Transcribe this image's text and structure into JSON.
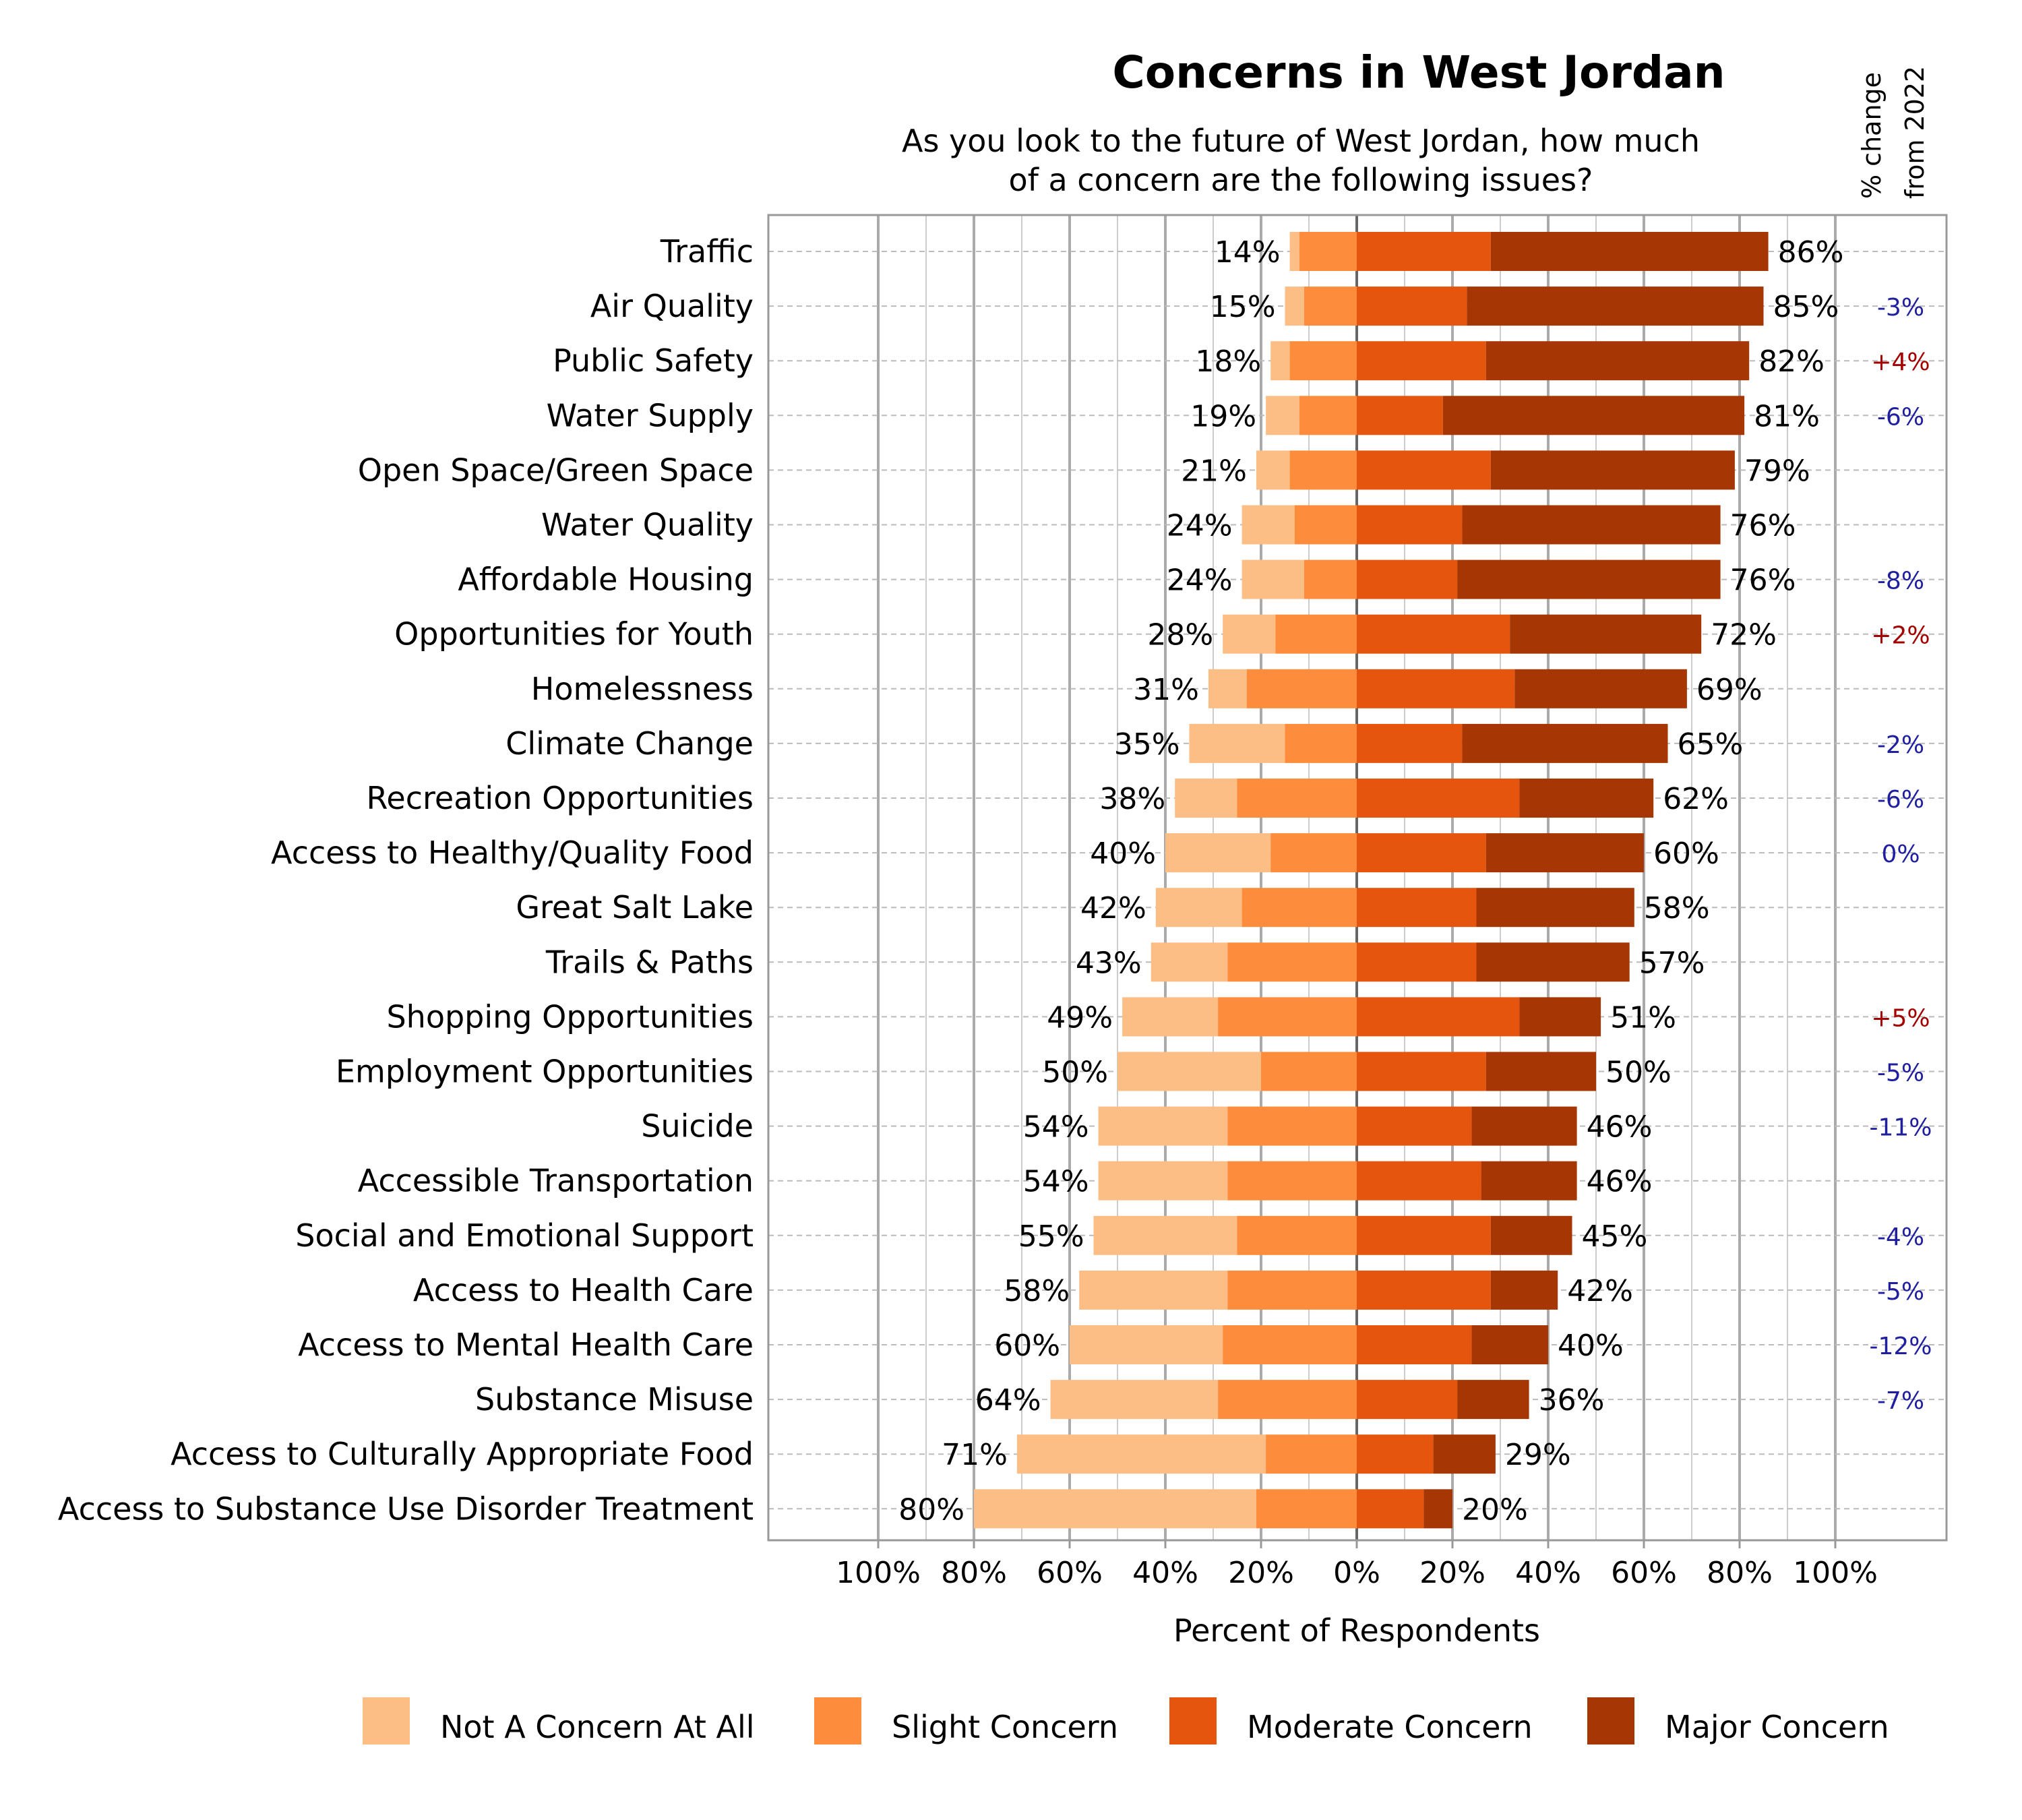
{
  "chart_data": {
    "type": "bar",
    "subtype": "diverging-stacked",
    "title": "Concerns in West Jordan",
    "subtitle": "As you look to the future of West Jordan, how much of a concern are the following issues?",
    "xlabel": "Percent of Respondents",
    "change_header": "% change from 2022",
    "xlim": [
      -100,
      100
    ],
    "x_ticks": [
      "100%",
      "80%",
      "60%",
      "40%",
      "20%",
      "0%",
      "20%",
      "40%",
      "60%",
      "80%",
      "100%"
    ],
    "grid": true,
    "legend_placement": "bottom",
    "series": [
      {
        "name": "Not A Concern At All",
        "color": "#FDBE85",
        "side": "negative"
      },
      {
        "name": "Slight Concern",
        "color": "#FD8D3C",
        "side": "negative"
      },
      {
        "name": "Moderate Concern",
        "color": "#E6550D",
        "side": "positive"
      },
      {
        "name": "Major Concern",
        "color": "#A63603",
        "side": "positive"
      }
    ],
    "change_colors": {
      "negative": "#1f1fa0",
      "positive": "#a30000"
    },
    "categories": [
      {
        "label": "Traffic",
        "values": [
          2,
          12,
          28,
          58
        ],
        "left": "14%",
        "right": "86%",
        "change": ""
      },
      {
        "label": "Air Quality",
        "values": [
          4,
          11,
          23,
          62
        ],
        "left": "15%",
        "right": "85%",
        "change": "-3%"
      },
      {
        "label": "Public Safety",
        "values": [
          4,
          14,
          27,
          55
        ],
        "left": "18%",
        "right": "82%",
        "change": "+4%"
      },
      {
        "label": "Water Supply",
        "values": [
          7,
          12,
          18,
          63
        ],
        "left": "19%",
        "right": "81%",
        "change": "-6%"
      },
      {
        "label": "Open Space/Green Space",
        "values": [
          7,
          14,
          28,
          51
        ],
        "left": "21%",
        "right": "79%",
        "change": ""
      },
      {
        "label": "Water Quality",
        "values": [
          11,
          13,
          22,
          54
        ],
        "left": "24%",
        "right": "76%",
        "change": ""
      },
      {
        "label": "Affordable Housing",
        "values": [
          13,
          11,
          21,
          55
        ],
        "left": "24%",
        "right": "76%",
        "change": "-8%"
      },
      {
        "label": "Opportunities for Youth",
        "values": [
          11,
          17,
          32,
          40
        ],
        "left": "28%",
        "right": "72%",
        "change": "+2%"
      },
      {
        "label": "Homelessness",
        "values": [
          8,
          23,
          33,
          36
        ],
        "left": "31%",
        "right": "69%",
        "change": ""
      },
      {
        "label": "Climate Change",
        "values": [
          20,
          15,
          22,
          43
        ],
        "left": "35%",
        "right": "65%",
        "change": "-2%"
      },
      {
        "label": "Recreation Opportunities",
        "values": [
          13,
          25,
          34,
          28
        ],
        "left": "38%",
        "right": "62%",
        "change": "-6%"
      },
      {
        "label": "Access to Healthy/Quality Food",
        "values": [
          22,
          18,
          27,
          33
        ],
        "left": "40%",
        "right": "60%",
        "change": "0%"
      },
      {
        "label": "Great Salt Lake",
        "values": [
          18,
          24,
          25,
          33
        ],
        "left": "42%",
        "right": "58%",
        "change": ""
      },
      {
        "label": "Trails & Paths",
        "values": [
          16,
          27,
          25,
          32
        ],
        "left": "43%",
        "right": "57%",
        "change": ""
      },
      {
        "label": "Shopping Opportunities",
        "values": [
          20,
          29,
          34,
          17
        ],
        "left": "49%",
        "right": "51%",
        "change": "+5%"
      },
      {
        "label": "Employment Opportunities",
        "values": [
          30,
          20,
          27,
          23
        ],
        "left": "50%",
        "right": "50%",
        "change": "-5%"
      },
      {
        "label": "Suicide",
        "values": [
          27,
          27,
          24,
          22
        ],
        "left": "54%",
        "right": "46%",
        "change": "-11%"
      },
      {
        "label": "Accessible Transportation",
        "values": [
          27,
          27,
          26,
          20
        ],
        "left": "54%",
        "right": "46%",
        "change": ""
      },
      {
        "label": "Social and Emotional Support",
        "values": [
          30,
          25,
          28,
          17
        ],
        "left": "55%",
        "right": "45%",
        "change": "-4%"
      },
      {
        "label": "Access to Health Care",
        "values": [
          31,
          27,
          28,
          14
        ],
        "left": "58%",
        "right": "42%",
        "change": "-5%"
      },
      {
        "label": "Access to Mental Health Care",
        "values": [
          32,
          28,
          24,
          16
        ],
        "left": "60%",
        "right": "40%",
        "change": "-12%"
      },
      {
        "label": "Substance Misuse",
        "values": [
          35,
          29,
          21,
          15
        ],
        "left": "64%",
        "right": "36%",
        "change": "-7%"
      },
      {
        "label": "Access to Culturally Appropriate Food",
        "values": [
          52,
          19,
          16,
          13
        ],
        "left": "71%",
        "right": "29%",
        "change": ""
      },
      {
        "label": "Access to Substance Use Disorder Treatment",
        "values": [
          59,
          21,
          14,
          6
        ],
        "left": "80%",
        "right": "20%",
        "change": ""
      }
    ]
  }
}
